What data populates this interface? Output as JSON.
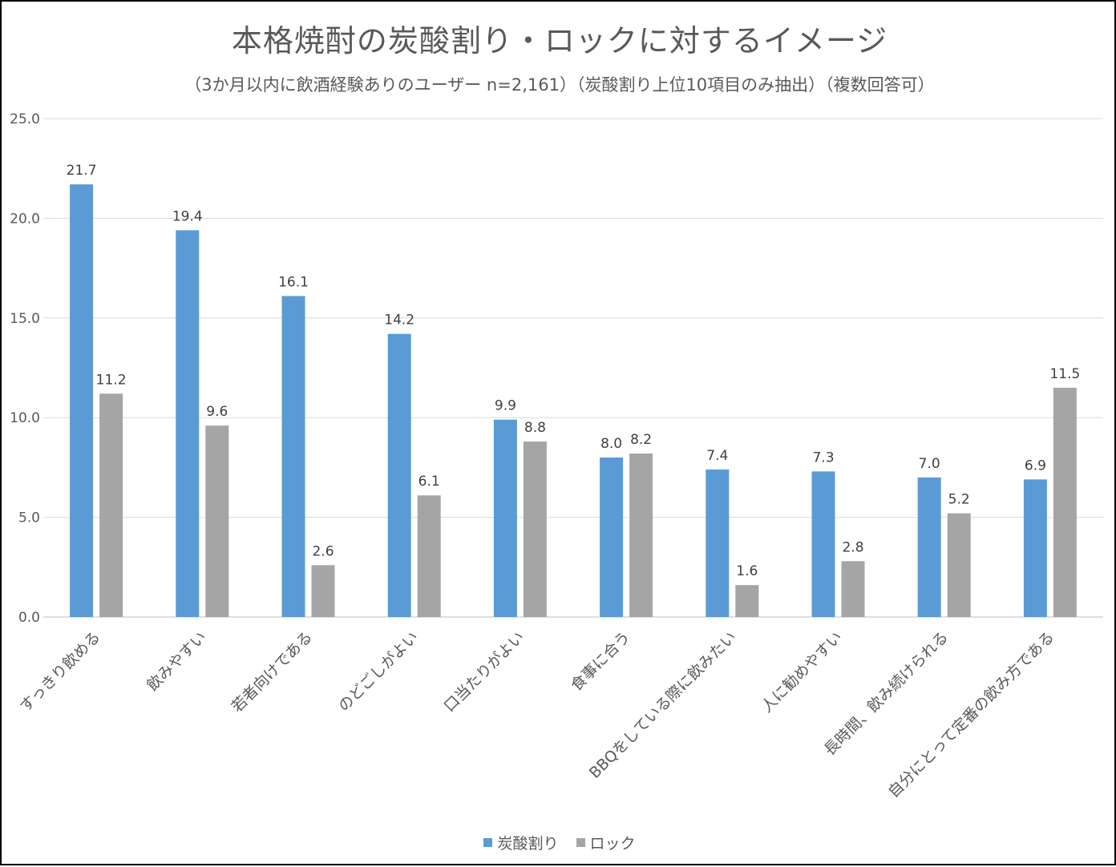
{
  "chart_data": {
    "type": "bar",
    "title": "本格焼酎の炭酸割り・ロックに対するイメージ",
    "subtitle": "（3か月以内に飲酒経験ありのユーザー n=2,161）（炭酸割り上位10項目のみ抽出）（複数回答可）",
    "categories": [
      "すっきり飲める",
      "飲みやすい",
      "若者向けである",
      "のどごしがよい",
      "口当たりがよい",
      "食事に合う",
      "BBQをしている際に飲みたい",
      "人に勧めやすい",
      "長時間、飲み続けられる",
      "自分にとって定番の飲み方である"
    ],
    "series": [
      {
        "name": "炭酸割り",
        "color": "#5B9BD5",
        "values": [
          21.7,
          19.4,
          16.1,
          14.2,
          9.9,
          8.0,
          7.4,
          7.3,
          7.0,
          6.9
        ],
        "labels": [
          "21.7",
          "19.4",
          "16.1",
          "14.2",
          "9.9",
          "8.0",
          "7.4",
          "7.3",
          "7.0",
          "6.9"
        ]
      },
      {
        "name": "ロック",
        "color": "#A5A5A5",
        "values": [
          11.2,
          9.6,
          2.6,
          6.1,
          8.8,
          8.2,
          1.6,
          2.8,
          5.2,
          11.5
        ],
        "labels": [
          "11.2",
          "9.6",
          "2.6",
          "6.1",
          "8.8",
          "8.2",
          "1.6",
          "2.8",
          "5.2",
          "11.5"
        ]
      }
    ],
    "ylim": [
      0,
      25
    ],
    "yticks": [
      "0.0",
      "5.0",
      "10.0",
      "15.0",
      "20.0",
      "25.0"
    ],
    "grid": true,
    "legend": "bottom",
    "xlabel": "",
    "ylabel": ""
  }
}
